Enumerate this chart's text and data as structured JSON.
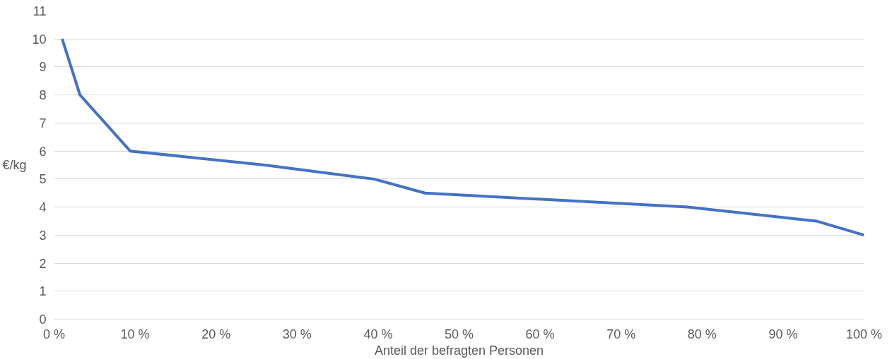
{
  "chart_data": {
    "type": "line",
    "xlabel": "Anteil der befragten Personen",
    "ylabel": "€/kg",
    "x": [
      1,
      3.2,
      9.4,
      26,
      39.5,
      45.8,
      78.2,
      94.1,
      100
    ],
    "series": [
      {
        "color": "#4472c4",
        "values": [
          10,
          8,
          6,
          5.5,
          5,
          4.5,
          4,
          3.5,
          3
        ]
      }
    ],
    "xlim": [
      0,
      100
    ],
    "xticks": [
      {
        "value": 0,
        "label": "0 %"
      },
      {
        "value": 10,
        "label": "10 %"
      },
      {
        "value": 20,
        "label": "20 %"
      },
      {
        "value": 30,
        "label": "30 %"
      },
      {
        "value": 40,
        "label": "40 %"
      },
      {
        "value": 50,
        "label": "50 %"
      },
      {
        "value": 60,
        "label": "60 %"
      },
      {
        "value": 70,
        "label": "70 %"
      },
      {
        "value": 80,
        "label": "80 %"
      },
      {
        "value": 90,
        "label": "90 %"
      },
      {
        "value": 100,
        "label": "100 %"
      }
    ],
    "ylim": [
      0,
      11
    ],
    "yticks": [
      0,
      1,
      2,
      3,
      4,
      5,
      6,
      7,
      8,
      9,
      10,
      11
    ],
    "grid": "y",
    "line_style": "solid",
    "marker": "none"
  }
}
